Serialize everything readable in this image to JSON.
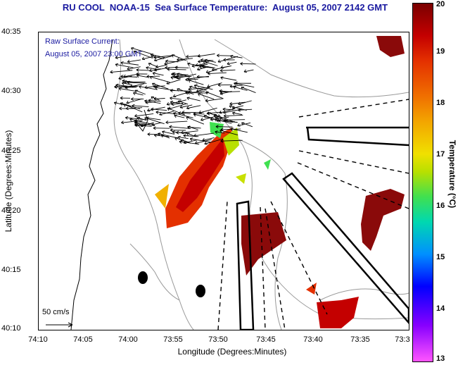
{
  "title": "RU COOL  NOAA-15  Sea Surface Temperature:  August 05, 2007 2142 GMT",
  "current": {
    "line1": "Raw Surface Current:",
    "line2": "August 05, 2007 23:00 GMT",
    "scale_label": "50 cm/s"
  },
  "axes": {
    "xlabel": "Longitude (Degrees:Minutes)",
    "ylabel": "Latitude (Degrees:Minutes)",
    "xticks": [
      "74:10",
      "74:05",
      "74:00",
      "73:55",
      "73:50",
      "73:45",
      "73:40",
      "73:35",
      "73:3"
    ],
    "yticks": [
      "40:35",
      "40:30",
      "40:25",
      "40:20",
      "40:15",
      "40:10"
    ]
  },
  "colorbar": {
    "label": "Temperature (°C)",
    "ticks": [
      "20",
      "19",
      "18",
      "17",
      "16",
      "15",
      "14",
      "13"
    ],
    "range": [
      13,
      20
    ]
  },
  "colors": {
    "title": "#1a1aa0",
    "warm": "#c8180e",
    "hot": "#8a0a0a"
  }
}
